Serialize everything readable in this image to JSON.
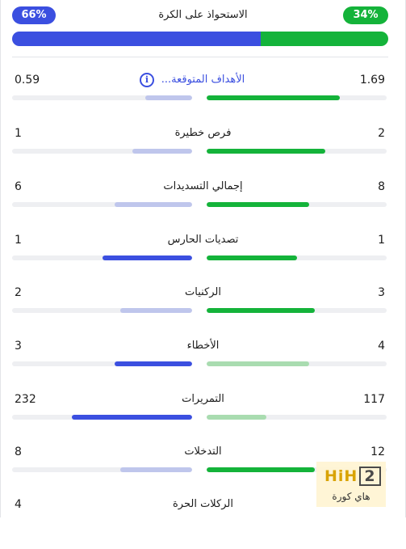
{
  "colors": {
    "home_green": "#14b33a",
    "home_green_light": "#a9dcb0",
    "away_blue": "#3b4fe0",
    "away_blue_light": "#bfc6ec",
    "track": "#eeeff2"
  },
  "possession": {
    "title": "الاستحواذ على الكرة",
    "away_label": "66%",
    "home_label": "34%",
    "away_value": 66,
    "home_value": 34
  },
  "stats": [
    {
      "label": "الأهداف المتوقعة...",
      "left": "0.59",
      "right": "1.69",
      "left_fill": 0.26,
      "right_fill": 0.74,
      "left_strong": false,
      "right_strong": true,
      "link": true,
      "info_icon": "info-icon"
    },
    {
      "label": "فرص خطيرة",
      "left": "1",
      "right": "2",
      "left_fill": 0.33,
      "right_fill": 0.66,
      "left_strong": false,
      "right_strong": true
    },
    {
      "label": "إجمالي التسديدات",
      "left": "6",
      "right": "8",
      "left_fill": 0.43,
      "right_fill": 0.57,
      "left_strong": false,
      "right_strong": true
    },
    {
      "label": "تصديات الحارس",
      "left": "1",
      "right": "1",
      "left_fill": 0.5,
      "right_fill": 0.5,
      "left_strong": true,
      "right_strong": true
    },
    {
      "label": "الركنيات",
      "left": "2",
      "right": "3",
      "left_fill": 0.4,
      "right_fill": 0.6,
      "left_strong": false,
      "right_strong": true
    },
    {
      "label": "الأخطاء",
      "left": "3",
      "right": "4",
      "left_fill": 0.43,
      "right_fill": 0.57,
      "left_strong": true,
      "right_strong": false
    },
    {
      "label": "التمريرات",
      "left": "232",
      "right": "117",
      "left_fill": 0.67,
      "right_fill": 0.33,
      "left_strong": true,
      "right_strong": false
    },
    {
      "label": "التدخلات",
      "left": "8",
      "right": "12",
      "left_fill": 0.4,
      "right_fill": 0.6,
      "left_strong": false,
      "right_strong": true
    },
    {
      "label": "الركلات الحرة",
      "left": "4",
      "right": "",
      "left_fill": 0,
      "right_fill": 0,
      "left_strong": false,
      "right_strong": false,
      "no_bars": true
    }
  ],
  "watermark": {
    "logo_a": "HiH",
    "logo_b": "2",
    "text": "هاي كورة"
  }
}
